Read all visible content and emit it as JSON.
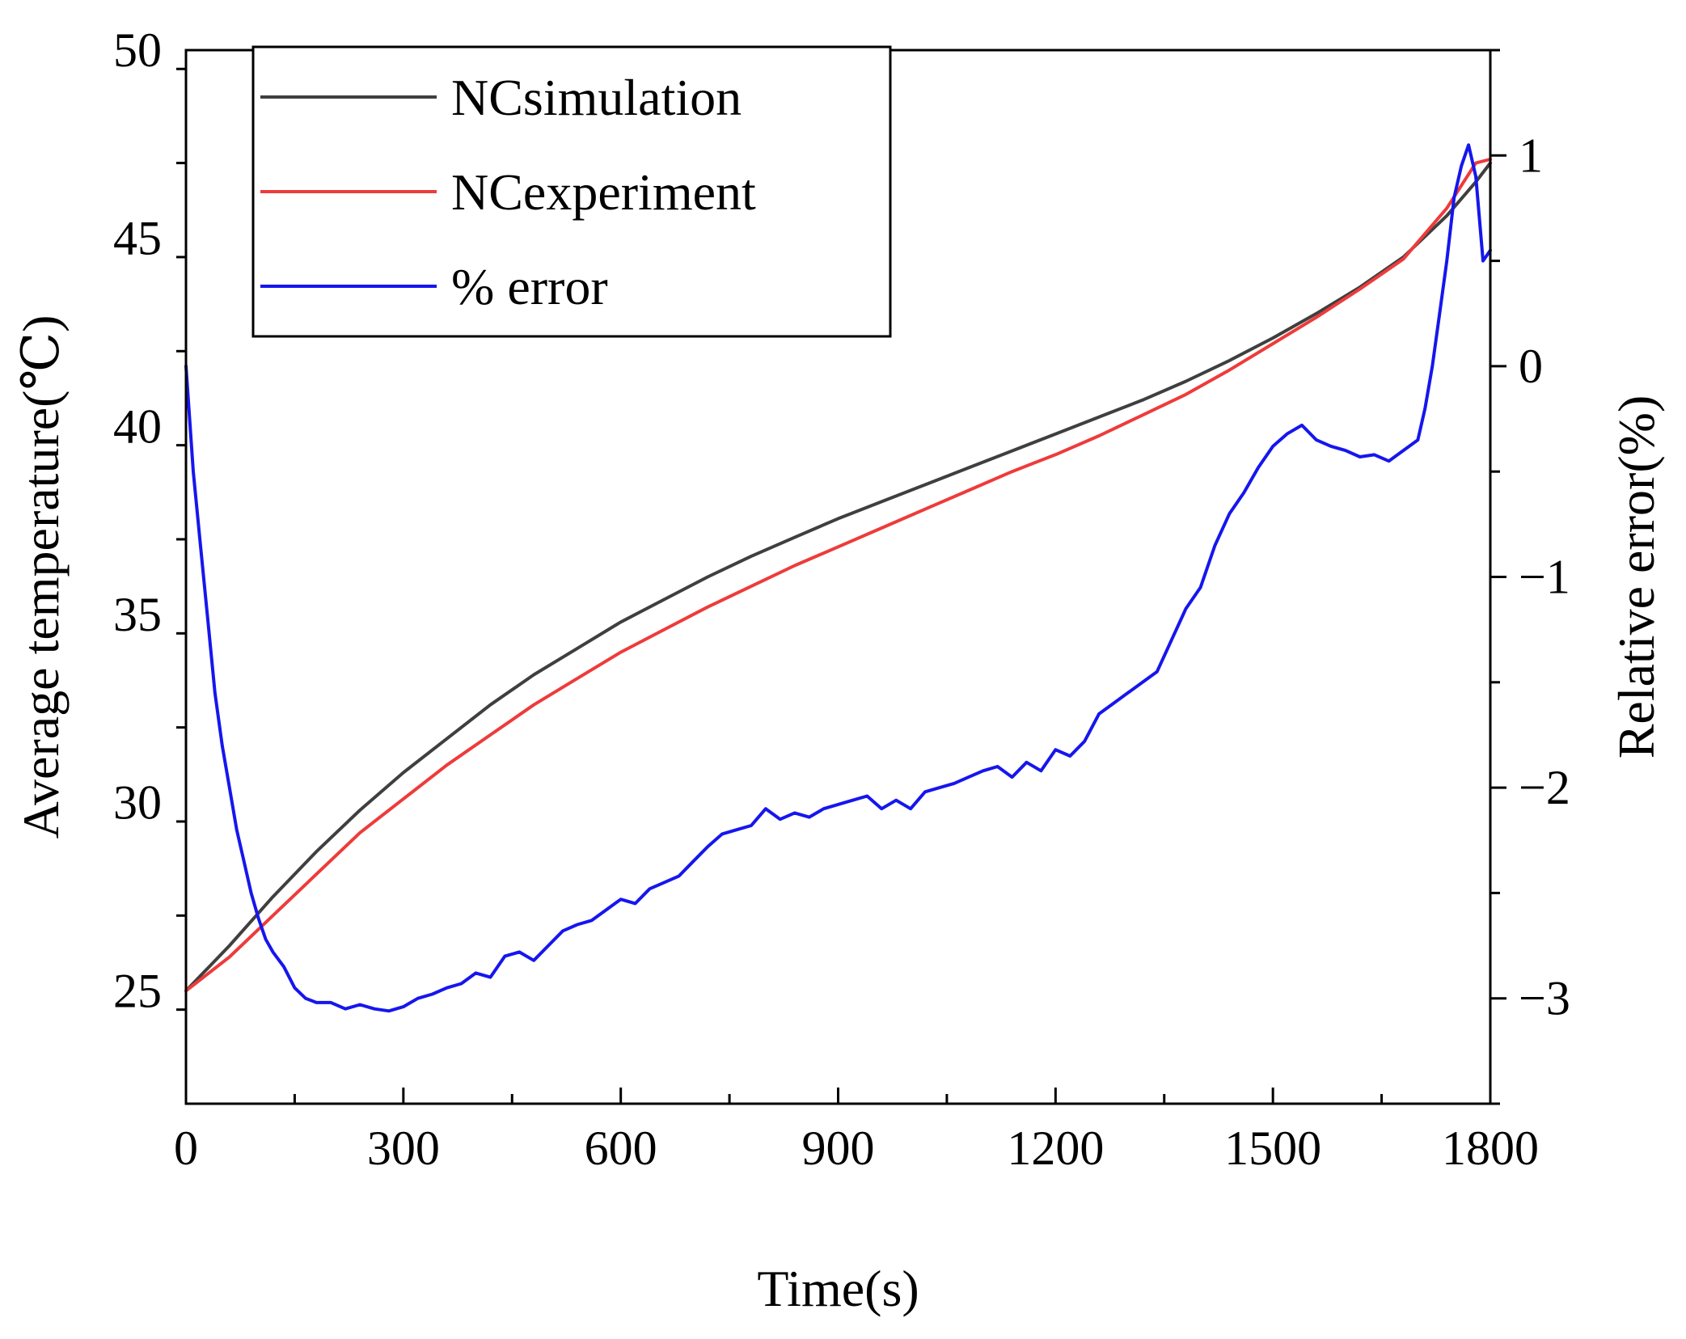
{
  "chart_data": {
    "type": "line",
    "title": "",
    "xlabel": "Time(s)",
    "ylabel": "Average temperature(℃)",
    "y2label": "Relative error(%)",
    "xlim": [
      0,
      1800
    ],
    "ylim": [
      22,
      50
    ],
    "y2lim": [
      -3.5,
      1.5
    ],
    "xticks": [
      0,
      300,
      600,
      900,
      1200,
      1500,
      1800
    ],
    "xtick_labels": [
      "0",
      "300",
      "600",
      "900",
      "1200",
      "1500",
      "1800"
    ],
    "yticks": [
      25,
      30,
      35,
      40,
      45,
      50
    ],
    "ytick_labels": [
      "25",
      "30",
      "35",
      "40",
      "45",
      "50"
    ],
    "y2ticks": [
      -3,
      -2,
      -1,
      0,
      1
    ],
    "y2tick_labels": [
      "−3",
      "−2",
      "−1",
      "0",
      "1"
    ],
    "grid": false,
    "legend_position": "top-left",
    "series": [
      {
        "name": "NCsimulation",
        "axis": "left",
        "color": "#3f3f3f",
        "x": [
          0,
          60,
          120,
          180,
          240,
          300,
          360,
          420,
          480,
          540,
          600,
          660,
          720,
          780,
          840,
          900,
          960,
          1020,
          1080,
          1140,
          1200,
          1260,
          1320,
          1380,
          1440,
          1500,
          1560,
          1620,
          1680,
          1740,
          1780,
          1800
        ],
        "y": [
          25.0,
          26.2,
          27.5,
          28.7,
          29.8,
          30.8,
          31.7,
          32.6,
          33.4,
          34.1,
          34.8,
          35.4,
          36.0,
          36.55,
          37.05,
          37.55,
          38.0,
          38.45,
          38.9,
          39.35,
          39.8,
          40.25,
          40.7,
          41.2,
          41.75,
          42.35,
          43.0,
          43.7,
          44.5,
          45.6,
          46.5,
          47.0
        ]
      },
      {
        "name": "NCexperiment",
        "axis": "left",
        "color": "#ee3b3b",
        "x": [
          0,
          60,
          120,
          180,
          240,
          300,
          360,
          420,
          480,
          540,
          600,
          660,
          720,
          780,
          840,
          900,
          960,
          1020,
          1080,
          1140,
          1200,
          1260,
          1320,
          1380,
          1440,
          1500,
          1560,
          1620,
          1680,
          1740,
          1780,
          1800
        ],
        "y": [
          25.0,
          25.9,
          27.0,
          28.1,
          29.2,
          30.1,
          31.0,
          31.8,
          32.6,
          33.3,
          34.0,
          34.6,
          35.2,
          35.75,
          36.3,
          36.8,
          37.3,
          37.8,
          38.3,
          38.8,
          39.25,
          39.75,
          40.3,
          40.85,
          41.5,
          42.2,
          42.9,
          43.65,
          44.45,
          45.8,
          47.0,
          47.1
        ]
      },
      {
        "name": "% error",
        "axis": "right",
        "color": "#1616ee",
        "x": [
          0,
          10,
          20,
          30,
          40,
          50,
          60,
          70,
          80,
          90,
          100,
          110,
          120,
          135,
          150,
          165,
          180,
          200,
          220,
          240,
          260,
          280,
          300,
          320,
          340,
          360,
          380,
          400,
          420,
          440,
          460,
          480,
          500,
          520,
          540,
          560,
          580,
          600,
          620,
          640,
          660,
          680,
          700,
          720,
          740,
          760,
          780,
          800,
          820,
          840,
          860,
          880,
          900,
          920,
          940,
          960,
          980,
          1000,
          1020,
          1040,
          1060,
          1080,
          1100,
          1120,
          1140,
          1160,
          1180,
          1200,
          1220,
          1240,
          1260,
          1280,
          1300,
          1320,
          1340,
          1360,
          1380,
          1400,
          1420,
          1440,
          1460,
          1480,
          1500,
          1520,
          1540,
          1560,
          1580,
          1600,
          1620,
          1640,
          1660,
          1680,
          1700,
          1710,
          1720,
          1730,
          1740,
          1750,
          1760,
          1770,
          1780,
          1790,
          1800
        ],
        "y": [
          0.0,
          -0.5,
          -0.85,
          -1.2,
          -1.55,
          -1.8,
          -2.0,
          -2.2,
          -2.35,
          -2.5,
          -2.62,
          -2.72,
          -2.78,
          -2.85,
          -2.95,
          -3.0,
          -3.02,
          -3.02,
          -3.05,
          -3.03,
          -3.05,
          -3.06,
          -3.04,
          -3.0,
          -2.98,
          -2.95,
          -2.93,
          -2.88,
          -2.9,
          -2.8,
          -2.78,
          -2.82,
          -2.75,
          -2.68,
          -2.65,
          -2.63,
          -2.58,
          -2.53,
          -2.55,
          -2.48,
          -2.45,
          -2.42,
          -2.35,
          -2.28,
          -2.22,
          -2.2,
          -2.18,
          -2.1,
          -2.15,
          -2.12,
          -2.14,
          -2.1,
          -2.08,
          -2.06,
          -2.04,
          -2.1,
          -2.06,
          -2.1,
          -2.02,
          -2.0,
          -1.98,
          -1.95,
          -1.92,
          -1.9,
          -1.95,
          -1.88,
          -1.92,
          -1.82,
          -1.85,
          -1.78,
          -1.65,
          -1.6,
          -1.55,
          -1.5,
          -1.45,
          -1.3,
          -1.15,
          -1.05,
          -0.85,
          -0.7,
          -0.6,
          -0.48,
          -0.38,
          -0.32,
          -0.28,
          -0.35,
          -0.38,
          -0.4,
          -0.43,
          -0.42,
          -0.45,
          -0.4,
          -0.35,
          -0.2,
          0.0,
          0.25,
          0.5,
          0.8,
          0.95,
          1.05,
          0.9,
          0.5,
          0.55
        ]
      }
    ]
  },
  "legend": {
    "items": [
      "NCsimulation",
      "NCexperiment",
      "% error"
    ]
  }
}
